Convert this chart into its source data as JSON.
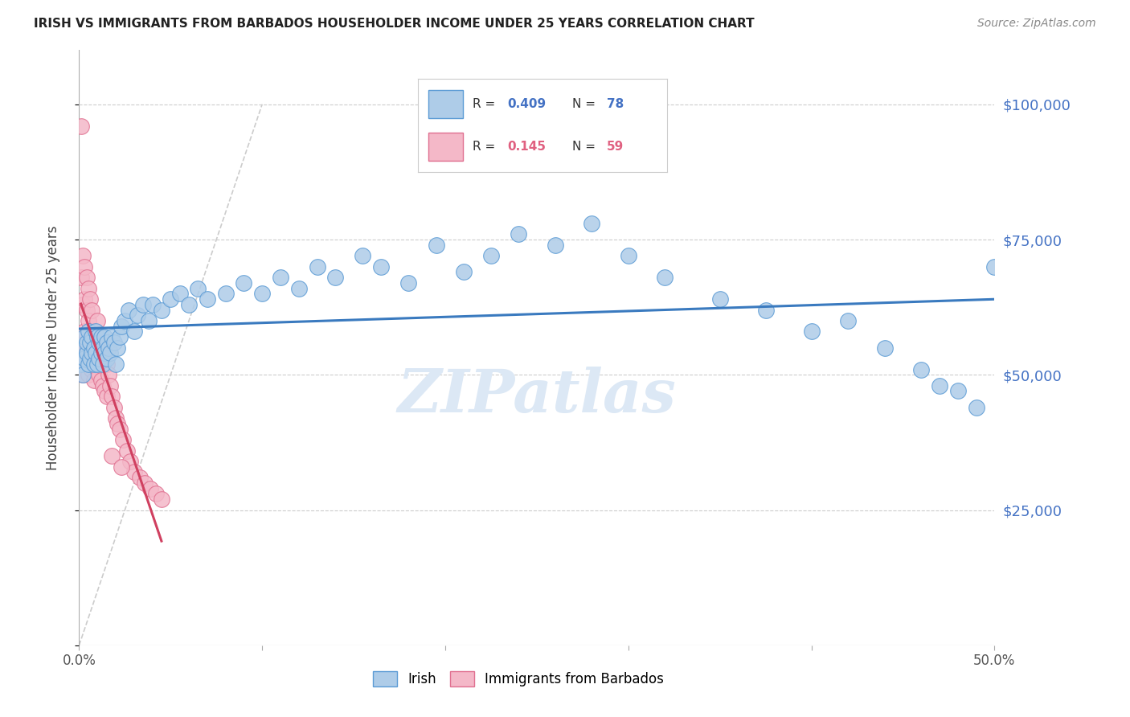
{
  "title": "IRISH VS IMMIGRANTS FROM BARBADOS HOUSEHOLDER INCOME UNDER 25 YEARS CORRELATION CHART",
  "source": "Source: ZipAtlas.com",
  "ylabel": "Householder Income Under 25 years",
  "xmin": 0.0,
  "xmax": 0.5,
  "ymin": 0,
  "ymax": 110000,
  "yticks": [
    0,
    25000,
    50000,
    75000,
    100000
  ],
  "ytick_labels": [
    "",
    "$25,000",
    "$50,000",
    "$75,000",
    "$100,000"
  ],
  "xticks": [
    0.0,
    0.1,
    0.2,
    0.3,
    0.4,
    0.5
  ],
  "xtick_labels": [
    "0.0%",
    "",
    "",
    "",
    "",
    "50.0%"
  ],
  "irish_R": 0.409,
  "irish_N": 78,
  "barbados_R": 0.145,
  "barbados_N": 59,
  "irish_color": "#aecce8",
  "irish_edge_color": "#5b9bd5",
  "barbados_color": "#f4b8c8",
  "barbados_edge_color": "#e07090",
  "trendline_irish_color": "#3a7abf",
  "trendline_barbados_color": "#d04060",
  "irish_x": [
    0.001,
    0.002,
    0.002,
    0.003,
    0.003,
    0.004,
    0.004,
    0.005,
    0.005,
    0.006,
    0.006,
    0.007,
    0.007,
    0.008,
    0.008,
    0.009,
    0.009,
    0.01,
    0.01,
    0.011,
    0.011,
    0.012,
    0.012,
    0.013,
    0.013,
    0.014,
    0.014,
    0.015,
    0.015,
    0.016,
    0.017,
    0.018,
    0.019,
    0.02,
    0.021,
    0.022,
    0.023,
    0.025,
    0.027,
    0.03,
    0.032,
    0.035,
    0.038,
    0.04,
    0.045,
    0.05,
    0.055,
    0.06,
    0.065,
    0.07,
    0.08,
    0.09,
    0.1,
    0.11,
    0.12,
    0.13,
    0.14,
    0.155,
    0.165,
    0.18,
    0.195,
    0.21,
    0.225,
    0.24,
    0.26,
    0.28,
    0.3,
    0.32,
    0.35,
    0.375,
    0.4,
    0.42,
    0.44,
    0.46,
    0.47,
    0.48,
    0.49,
    0.5
  ],
  "irish_y": [
    52000,
    50000,
    55000,
    53000,
    57000,
    54000,
    56000,
    52000,
    58000,
    53000,
    56000,
    54000,
    57000,
    52000,
    55000,
    54000,
    58000,
    52000,
    57000,
    53000,
    56000,
    54000,
    57000,
    52000,
    55000,
    54000,
    57000,
    53000,
    56000,
    55000,
    54000,
    57000,
    56000,
    52000,
    55000,
    57000,
    59000,
    60000,
    62000,
    58000,
    61000,
    63000,
    60000,
    63000,
    62000,
    64000,
    65000,
    63000,
    66000,
    64000,
    65000,
    67000,
    65000,
    68000,
    66000,
    70000,
    68000,
    72000,
    70000,
    67000,
    74000,
    69000,
    72000,
    76000,
    74000,
    78000,
    72000,
    68000,
    64000,
    62000,
    58000,
    60000,
    55000,
    51000,
    48000,
    47000,
    44000,
    70000
  ],
  "barbados_x": [
    0.001,
    0.001,
    0.001,
    0.002,
    0.002,
    0.002,
    0.002,
    0.003,
    0.003,
    0.003,
    0.003,
    0.004,
    0.004,
    0.004,
    0.005,
    0.005,
    0.005,
    0.005,
    0.006,
    0.006,
    0.006,
    0.007,
    0.007,
    0.007,
    0.008,
    0.008,
    0.008,
    0.009,
    0.009,
    0.01,
    0.01,
    0.011,
    0.011,
    0.012,
    0.012,
    0.013,
    0.013,
    0.014,
    0.014,
    0.015,
    0.015,
    0.016,
    0.017,
    0.018,
    0.019,
    0.02,
    0.021,
    0.022,
    0.024,
    0.026,
    0.028,
    0.03,
    0.033,
    0.036,
    0.039,
    0.042,
    0.045,
    0.018,
    0.023
  ],
  "barbados_y": [
    96000,
    68000,
    55000,
    72000,
    63000,
    56000,
    50000,
    70000,
    64000,
    58000,
    52000,
    68000,
    62000,
    55000,
    66000,
    60000,
    56000,
    50000,
    64000,
    58000,
    53000,
    62000,
    56000,
    51000,
    58000,
    53000,
    49000,
    57000,
    52000,
    60000,
    54000,
    56000,
    50000,
    55000,
    49000,
    54000,
    48000,
    53000,
    47000,
    52000,
    46000,
    50000,
    48000,
    46000,
    44000,
    42000,
    41000,
    40000,
    38000,
    36000,
    34000,
    32000,
    31000,
    30000,
    29000,
    28000,
    27000,
    35000,
    33000
  ],
  "watermark": "ZIPatlas",
  "background_color": "#ffffff",
  "grid_color": "#cccccc"
}
